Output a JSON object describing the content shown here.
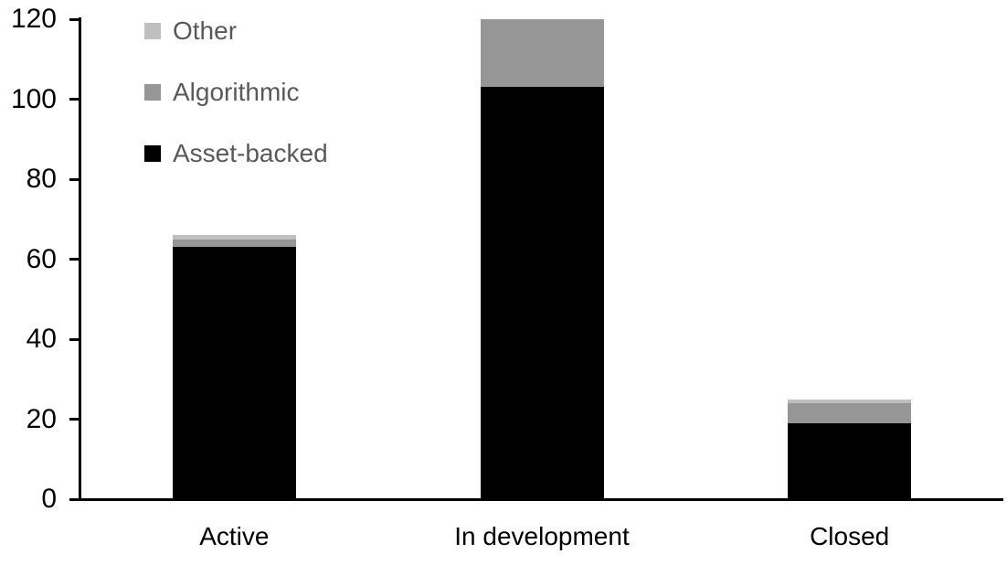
{
  "chart_data": {
    "type": "bar",
    "variant": "stacked",
    "title": "",
    "xlabel": "",
    "ylabel": "",
    "categories": [
      "Active",
      "In development",
      "Closed"
    ],
    "series": [
      {
        "name": "Asset-backed",
        "color": "#000000",
        "values": [
          63,
          103,
          19
        ]
      },
      {
        "name": "Algorithmic",
        "color": "#969696",
        "values": [
          2,
          17,
          5
        ]
      },
      {
        "name": "Other",
        "color": "#bfbfbf",
        "values": [
          1,
          0,
          1
        ]
      }
    ],
    "stack_totals": [
      66,
      120,
      25
    ],
    "ylim": [
      0,
      120
    ],
    "yticks": [
      0,
      20,
      40,
      60,
      80,
      100,
      120
    ],
    "grid": false,
    "legend": {
      "position": "top-left-inside",
      "order_top_to_bottom": [
        "Other",
        "Algorithmic",
        "Asset-backed"
      ],
      "text_color": "#595959"
    },
    "axis_color": "#000000",
    "background_color": "#ffffff"
  }
}
